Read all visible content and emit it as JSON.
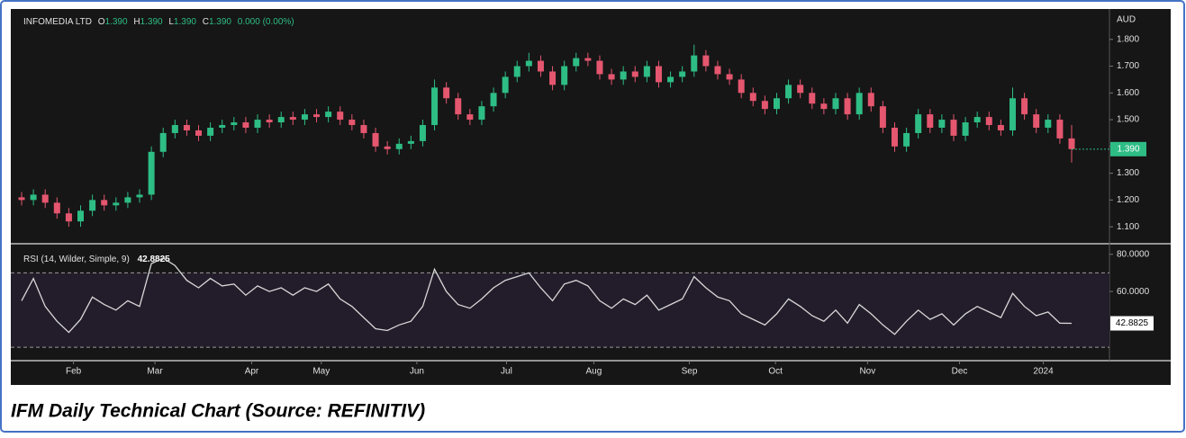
{
  "chart_data": [
    {
      "type": "candlestick",
      "title": "INFOMEDIA LTD",
      "ohlc": [
        {
          "label": "O",
          "value": "1.390"
        },
        {
          "label": "H",
          "value": "1.390"
        },
        {
          "label": "L",
          "value": "1.390"
        },
        {
          "label": "C",
          "value": "1.390"
        }
      ],
      "change": "0.000 (0.00%)",
      "currency": "AUD",
      "up_color": "#2ebd85",
      "down_color": "#e5566f",
      "open": [
        1.21,
        1.2,
        1.22,
        1.19,
        1.15,
        1.12,
        1.16,
        1.2,
        1.18,
        1.19,
        1.21,
        1.22,
        1.38,
        1.45,
        1.48,
        1.46,
        1.44,
        1.47,
        1.48,
        1.49,
        1.47,
        1.5,
        1.49,
        1.51,
        1.5,
        1.52,
        1.51,
        1.53,
        1.5,
        1.48,
        1.45,
        1.4,
        1.39,
        1.41,
        1.42,
        1.48,
        1.62,
        1.58,
        1.52,
        1.5,
        1.55,
        1.6,
        1.66,
        1.7,
        1.72,
        1.68,
        1.63,
        1.7,
        1.73,
        1.72,
        1.67,
        1.65,
        1.68,
        1.66,
        1.7,
        1.64,
        1.66,
        1.68,
        1.74,
        1.7,
        1.67,
        1.65,
        1.6,
        1.57,
        1.54,
        1.58,
        1.63,
        1.6,
        1.56,
        1.54,
        1.58,
        1.52,
        1.6,
        1.55,
        1.47,
        1.4,
        1.45,
        1.52,
        1.47,
        1.5,
        1.44,
        1.49,
        1.51,
        1.48,
        1.46,
        1.58,
        1.52,
        1.47,
        1.5,
        1.43
      ],
      "high": [
        1.23,
        1.24,
        1.24,
        1.21,
        1.17,
        1.18,
        1.22,
        1.22,
        1.21,
        1.23,
        1.24,
        1.4,
        1.47,
        1.5,
        1.5,
        1.48,
        1.49,
        1.5,
        1.51,
        1.51,
        1.52,
        1.52,
        1.53,
        1.53,
        1.54,
        1.54,
        1.55,
        1.55,
        1.52,
        1.5,
        1.47,
        1.42,
        1.43,
        1.44,
        1.5,
        1.65,
        1.64,
        1.6,
        1.54,
        1.57,
        1.62,
        1.68,
        1.72,
        1.75,
        1.74,
        1.7,
        1.72,
        1.75,
        1.75,
        1.74,
        1.69,
        1.7,
        1.7,
        1.72,
        1.72,
        1.68,
        1.7,
        1.78,
        1.76,
        1.72,
        1.69,
        1.67,
        1.62,
        1.59,
        1.6,
        1.65,
        1.65,
        1.62,
        1.58,
        1.6,
        1.6,
        1.62,
        1.62,
        1.57,
        1.49,
        1.47,
        1.54,
        1.54,
        1.52,
        1.52,
        1.51,
        1.53,
        1.53,
        1.5,
        1.62,
        1.6,
        1.54,
        1.52,
        1.52,
        1.48
      ],
      "low": [
        1.18,
        1.18,
        1.17,
        1.13,
        1.1,
        1.1,
        1.14,
        1.16,
        1.16,
        1.17,
        1.19,
        1.2,
        1.36,
        1.43,
        1.44,
        1.42,
        1.42,
        1.45,
        1.46,
        1.45,
        1.45,
        1.47,
        1.47,
        1.48,
        1.48,
        1.49,
        1.49,
        1.48,
        1.46,
        1.43,
        1.38,
        1.37,
        1.37,
        1.39,
        1.4,
        1.46,
        1.56,
        1.5,
        1.48,
        1.48,
        1.53,
        1.58,
        1.64,
        1.68,
        1.66,
        1.61,
        1.61,
        1.68,
        1.7,
        1.65,
        1.63,
        1.63,
        1.64,
        1.64,
        1.62,
        1.62,
        1.64,
        1.66,
        1.68,
        1.65,
        1.63,
        1.58,
        1.55,
        1.52,
        1.52,
        1.56,
        1.58,
        1.54,
        1.52,
        1.52,
        1.5,
        1.5,
        1.53,
        1.45,
        1.38,
        1.38,
        1.43,
        1.45,
        1.45,
        1.42,
        1.42,
        1.47,
        1.46,
        1.44,
        1.44,
        1.5,
        1.45,
        1.45,
        1.41,
        1.34
      ],
      "close": [
        1.2,
        1.22,
        1.19,
        1.15,
        1.12,
        1.16,
        1.2,
        1.18,
        1.19,
        1.21,
        1.22,
        1.38,
        1.45,
        1.48,
        1.46,
        1.44,
        1.47,
        1.48,
        1.49,
        1.47,
        1.5,
        1.49,
        1.51,
        1.5,
        1.52,
        1.51,
        1.53,
        1.5,
        1.48,
        1.45,
        1.4,
        1.39,
        1.41,
        1.42,
        1.48,
        1.62,
        1.58,
        1.52,
        1.5,
        1.55,
        1.6,
        1.66,
        1.7,
        1.72,
        1.68,
        1.63,
        1.7,
        1.73,
        1.72,
        1.67,
        1.65,
        1.68,
        1.66,
        1.7,
        1.64,
        1.66,
        1.68,
        1.74,
        1.7,
        1.67,
        1.65,
        1.6,
        1.57,
        1.54,
        1.58,
        1.63,
        1.6,
        1.56,
        1.54,
        1.58,
        1.52,
        1.6,
        1.55,
        1.47,
        1.4,
        1.45,
        1.52,
        1.47,
        1.5,
        1.44,
        1.49,
        1.51,
        1.48,
        1.46,
        1.58,
        1.52,
        1.47,
        1.5,
        1.43,
        1.39
      ],
      "last_value": {
        "value": 1.39,
        "label": "1.390"
      },
      "ylim": [
        1.04,
        1.9
      ],
      "yticks": [
        {
          "value": 1.1,
          "label": "1.100"
        },
        {
          "value": 1.2,
          "label": "1.200"
        },
        {
          "value": 1.3,
          "label": "1.300"
        },
        {
          "value": 1.4,
          "label": "1.400"
        },
        {
          "value": 1.5,
          "label": "1.500"
        },
        {
          "value": 1.6,
          "label": "1.600"
        },
        {
          "value": 1.7,
          "label": "1.700"
        },
        {
          "value": 1.8,
          "label": "1.800"
        }
      ],
      "xlim": [
        0,
        89
      ],
      "xticks": [
        {
          "value": 4.4,
          "label": "Feb"
        },
        {
          "value": 11.3,
          "label": "Mar"
        },
        {
          "value": 19.5,
          "label": "Apr"
        },
        {
          "value": 25.4,
          "label": "May"
        },
        {
          "value": 33.5,
          "label": "Jun"
        },
        {
          "value": 41.1,
          "label": "Jul"
        },
        {
          "value": 48.5,
          "label": "Aug"
        },
        {
          "value": 56.6,
          "label": "Sep"
        },
        {
          "value": 63.9,
          "label": "Oct"
        },
        {
          "value": 71.7,
          "label": "Nov"
        },
        {
          "value": 79.5,
          "label": "Dec"
        },
        {
          "value": 86.6,
          "label": "2024"
        }
      ]
    },
    {
      "type": "line",
      "title": "RSI (14, Wilder, Simple, 9)",
      "current": "42.8825",
      "color": "#d8d8d8",
      "values": [
        55,
        67,
        52,
        44,
        38,
        45,
        57,
        53,
        50,
        55,
        52,
        75,
        78,
        74,
        66,
        62,
        67,
        63,
        64,
        58,
        63,
        60,
        62,
        58,
        62,
        60,
        64,
        56,
        52,
        46,
        40,
        39,
        42,
        44,
        52,
        72,
        60,
        53,
        51,
        56,
        62,
        66,
        68,
        70,
        62,
        55,
        64,
        66,
        63,
        55,
        51,
        56,
        53,
        58,
        50,
        53,
        56,
        68,
        62,
        57,
        55,
        48,
        45,
        42,
        48,
        56,
        52,
        47,
        44,
        50,
        43,
        53,
        48,
        42,
        37,
        44,
        50,
        45,
        48,
        42,
        48,
        52,
        49,
        46,
        59,
        52,
        47,
        49,
        43,
        42.8825
      ],
      "last_value": {
        "value": 42.8825,
        "label": "42.8825"
      },
      "levels": [
        70,
        30
      ],
      "ylim": [
        23.3,
        85.2
      ],
      "yticks": [
        {
          "value": 60,
          "label": "60.0000"
        },
        {
          "value": 80,
          "label": "80.0000"
        }
      ]
    }
  ],
  "caption": "IFM Daily Technical Chart (Source: REFINITIV)"
}
